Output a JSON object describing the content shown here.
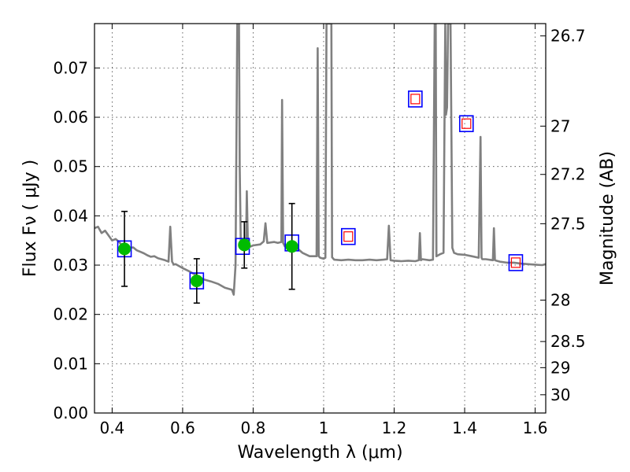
{
  "chart_data": {
    "type": "scatter",
    "xlabel": "Wavelength  λ (μm)",
    "ylabel": "Flux  Fν  ( μJy )",
    "ylabel_right": "Magnitude (AB)",
    "xlim": [
      0.35,
      1.63
    ],
    "ylim": [
      0.0,
      0.079
    ],
    "grid": true,
    "x_ticks": [
      {
        "value": 0.4,
        "label": "0.4"
      },
      {
        "value": 0.6,
        "label": "0.6"
      },
      {
        "value": 0.8,
        "label": "0.8"
      },
      {
        "value": 1.0,
        "label": "1"
      },
      {
        "value": 1.2,
        "label": "1.2"
      },
      {
        "value": 1.4,
        "label": "1.4"
      },
      {
        "value": 1.6,
        "label": "1.6"
      }
    ],
    "y_ticks": [
      {
        "value": 0.0,
        "label": "0.00"
      },
      {
        "value": 0.01,
        "label": "0.01"
      },
      {
        "value": 0.02,
        "label": "0.02"
      },
      {
        "value": 0.03,
        "label": "0.03"
      },
      {
        "value": 0.04,
        "label": "0.04"
      },
      {
        "value": 0.05,
        "label": "0.05"
      },
      {
        "value": 0.06,
        "label": "0.06"
      },
      {
        "value": 0.07,
        "label": "0.07"
      }
    ],
    "y2_ticks": [
      {
        "flux": 0.0765,
        "label": "26.7"
      },
      {
        "flux": 0.0582,
        "label": "27"
      },
      {
        "flux": 0.0484,
        "label": "27.2"
      },
      {
        "flux": 0.0384,
        "label": "27.5"
      },
      {
        "flux": 0.0229,
        "label": "28"
      },
      {
        "flux": 0.0145,
        "label": "28.5"
      },
      {
        "flux": 0.0092,
        "label": "29"
      },
      {
        "flux": 0.0037,
        "label": "30"
      }
    ],
    "series": [
      {
        "kind": "line",
        "color": "#808080",
        "x": [
          0.35,
          0.36,
          0.37,
          0.38,
          0.39,
          0.4,
          0.41,
          0.42,
          0.43,
          0.44,
          0.45,
          0.46,
          0.47,
          0.48,
          0.49,
          0.5,
          0.51,
          0.52,
          0.53,
          0.54,
          0.55,
          0.56,
          0.565,
          0.57,
          0.575,
          0.58,
          0.6,
          0.62,
          0.64,
          0.66,
          0.68,
          0.7,
          0.72,
          0.74,
          0.745,
          0.75,
          0.755,
          0.758,
          0.76,
          0.762,
          0.765,
          0.77,
          0.78,
          0.782,
          0.785,
          0.79,
          0.8,
          0.82,
          0.83,
          0.835,
          0.84,
          0.86,
          0.87,
          0.88,
          0.882,
          0.885,
          0.89,
          0.9,
          0.92,
          0.94,
          0.96,
          0.98,
          0.983,
          0.986,
          0.99,
          1.0,
          1.005,
          1.008,
          1.01,
          1.02,
          1.022,
          1.024,
          1.03,
          1.05,
          1.07,
          1.09,
          1.11,
          1.13,
          1.15,
          1.17,
          1.18,
          1.185,
          1.19,
          1.2,
          1.22,
          1.24,
          1.26,
          1.27,
          1.273,
          1.276,
          1.28,
          1.3,
          1.31,
          1.315,
          1.318,
          1.32,
          1.33,
          1.34,
          1.345,
          1.347,
          1.35,
          1.353,
          1.356,
          1.358,
          1.36,
          1.365,
          1.37,
          1.38,
          1.4,
          1.42,
          1.44,
          1.445,
          1.448,
          1.45,
          1.46,
          1.48,
          1.483,
          1.486,
          1.49,
          1.5,
          1.52,
          1.54,
          1.56,
          1.58,
          1.6,
          1.62,
          1.63
        ],
        "y": [
          0.0375,
          0.0378,
          0.0365,
          0.037,
          0.036,
          0.035,
          0.0353,
          0.0347,
          0.0338,
          0.034,
          0.0335,
          0.0336,
          0.033,
          0.0327,
          0.0324,
          0.032,
          0.0317,
          0.0318,
          0.0314,
          0.0312,
          0.031,
          0.0307,
          0.0378,
          0.0307,
          0.0301,
          0.0302,
          0.0294,
          0.0287,
          0.0279,
          0.0271,
          0.0267,
          0.0262,
          0.0254,
          0.025,
          0.024,
          0.03,
          0.079,
          0.079,
          0.079,
          0.05,
          0.034,
          0.0345,
          0.035,
          0.045,
          0.035,
          0.0337,
          0.034,
          0.0342,
          0.0348,
          0.0385,
          0.0345,
          0.0347,
          0.0345,
          0.0347,
          0.0635,
          0.0345,
          0.0338,
          0.0342,
          0.0337,
          0.0325,
          0.0318,
          0.0318,
          0.074,
          0.0318,
          0.0315,
          0.0313,
          0.0315,
          0.079,
          0.079,
          0.079,
          0.079,
          0.0316,
          0.0311,
          0.031,
          0.0311,
          0.031,
          0.031,
          0.0311,
          0.031,
          0.0311,
          0.0312,
          0.038,
          0.031,
          0.0309,
          0.0308,
          0.0309,
          0.0308,
          0.031,
          0.0365,
          0.031,
          0.0312,
          0.031,
          0.0311,
          0.079,
          0.079,
          0.0318,
          0.0322,
          0.0325,
          0.079,
          0.0605,
          0.062,
          0.079,
          0.079,
          0.079,
          0.079,
          0.0335,
          0.0325,
          0.0322,
          0.0321,
          0.0318,
          0.0315,
          0.056,
          0.0315,
          0.0312,
          0.0312,
          0.031,
          0.0375,
          0.031,
          0.0309,
          0.0307,
          0.0305,
          0.0305,
          0.0303,
          0.0302,
          0.0301,
          0.03,
          0.0302
        ]
      },
      {
        "kind": "open-square",
        "color": "#0000ff",
        "x": [
          0.435,
          0.64,
          0.77,
          0.91,
          1.07,
          1.26,
          1.405,
          1.545
        ],
        "y": [
          0.0333,
          0.0268,
          0.0338,
          0.0345,
          0.0358,
          0.0637,
          0.0587,
          0.0305
        ]
      },
      {
        "kind": "small-open-square",
        "color": "#ff0000",
        "x": [
          1.07,
          1.26,
          1.405,
          1.545
        ],
        "y": [
          0.0358,
          0.0637,
          0.0587,
          0.0305
        ]
      },
      {
        "kind": "filled-circle-errorbar",
        "color": "#00bb00",
        "x": [
          0.435,
          0.64,
          0.775,
          0.91
        ],
        "y": [
          0.0333,
          0.0268,
          0.0341,
          0.0338
        ],
        "yerr": [
          0.0076,
          0.0045,
          0.0047,
          0.0087
        ]
      }
    ]
  }
}
